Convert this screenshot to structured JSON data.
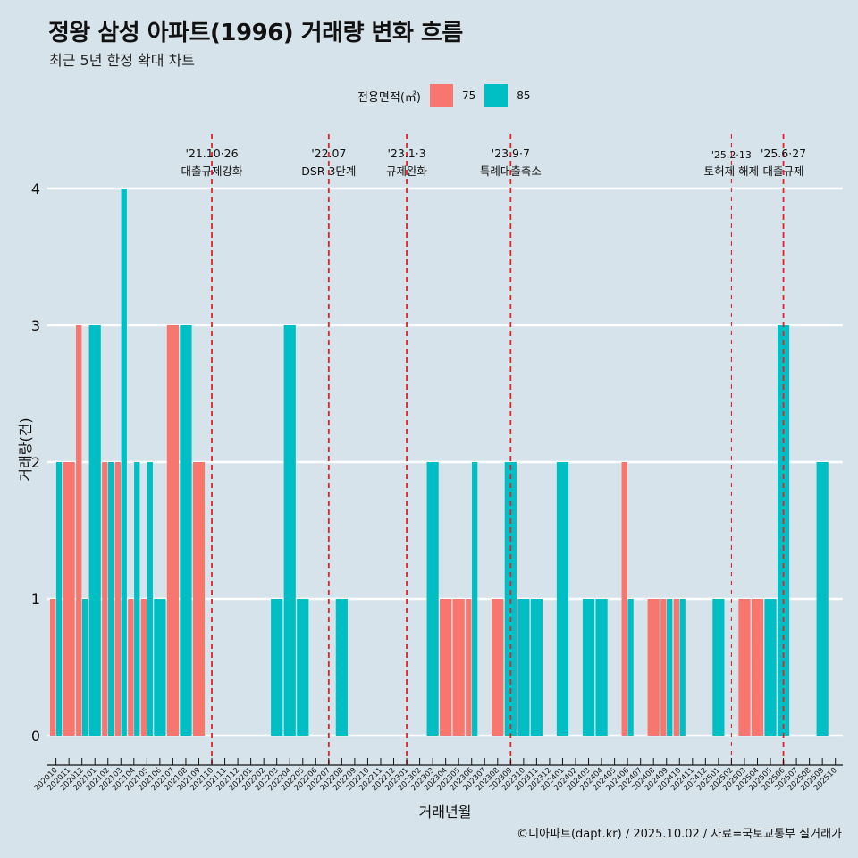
{
  "title": "정왕 삼성 아파트(1996) 거래량 변화 흐름",
  "subtitle": "최근 5년 한정 확대 차트",
  "caption": "©디아파트(dapt.kr) / 2025.10.02 / 자료=국토교통부 실거래가",
  "legend": {
    "title": "전용면적(㎡)",
    "items": [
      {
        "label": "75",
        "color": "#f8766d"
      },
      {
        "label": "85",
        "color": "#00bfc4"
      }
    ]
  },
  "chart_data": {
    "type": "bar",
    "title": "정왕 삼성 아파트(1996) 거래량 변화 흐름",
    "subtitle": "최근 5년 한정 확대 차트",
    "xlabel": "거래년월",
    "ylabel": "거래량(건)",
    "ylim": [
      0,
      4
    ],
    "yticks": [
      0,
      1,
      2,
      3,
      4
    ],
    "grid": true,
    "legend_position": "top",
    "bar_mode": "dodge",
    "categories": [
      "202010",
      "202011",
      "202012",
      "202101",
      "202102",
      "202103",
      "202104",
      "202105",
      "202106",
      "202107",
      "202108",
      "202109",
      "202110",
      "202111",
      "202112",
      "202201",
      "202202",
      "202203",
      "202204",
      "202205",
      "202206",
      "202207",
      "202208",
      "202209",
      "202210",
      "202211",
      "202212",
      "202301",
      "202302",
      "202303",
      "202304",
      "202305",
      "202306",
      "202307",
      "202308",
      "202309",
      "202310",
      "202311",
      "202312",
      "202401",
      "202402",
      "202403",
      "202404",
      "202405",
      "202406",
      "202407",
      "202408",
      "202409",
      "202410",
      "202411",
      "202412",
      "202501",
      "202502",
      "202503",
      "202504",
      "202505",
      "202506",
      "202507",
      "202508",
      "202509",
      "202510"
    ],
    "series": [
      {
        "name": "75",
        "color": "#f8766d",
        "values": [
          1,
          2,
          3,
          0,
          2,
          2,
          1,
          1,
          0,
          3,
          0,
          2,
          0,
          0,
          0,
          0,
          0,
          0,
          0,
          0,
          0,
          0,
          0,
          0,
          0,
          0,
          0,
          0,
          0,
          0,
          1,
          1,
          1,
          0,
          1,
          0,
          0,
          0,
          0,
          0,
          0,
          0,
          0,
          0,
          2,
          0,
          1,
          1,
          1,
          0,
          0,
          0,
          0,
          1,
          1,
          0,
          0,
          0,
          0,
          0,
          0
        ]
      },
      {
        "name": "85",
        "color": "#00bfc4",
        "values": [
          2,
          0,
          1,
          3,
          2,
          4,
          2,
          2,
          1,
          0,
          3,
          0,
          0,
          0,
          0,
          0,
          0,
          1,
          3,
          1,
          0,
          0,
          1,
          0,
          0,
          0,
          0,
          0,
          0,
          2,
          0,
          0,
          2,
          0,
          0,
          2,
          1,
          1,
          0,
          2,
          0,
          1,
          1,
          0,
          1,
          0,
          0,
          1,
          1,
          0,
          0,
          1,
          0,
          0,
          0,
          1,
          3,
          0,
          0,
          2,
          0
        ]
      }
    ],
    "annotations": [
      {
        "month": "202110",
        "date": "'21.10·26",
        "label": "대출규제강화",
        "style": "major"
      },
      {
        "month": "202207",
        "date": "'22.07",
        "label": "DSR 3단계",
        "style": "major"
      },
      {
        "month": "202301",
        "date": "'23.1·3",
        "label": "규제완화",
        "style": "major"
      },
      {
        "month": "202309",
        "date": "'23.9·7",
        "label": "특례대출축소",
        "style": "major"
      },
      {
        "month": "202502",
        "date": "'25.2·13",
        "label": "토허제 해제",
        "style": "minor"
      },
      {
        "month": "202506",
        "date": "'25.6·27",
        "label": "대출규제",
        "style": "major"
      }
    ]
  }
}
